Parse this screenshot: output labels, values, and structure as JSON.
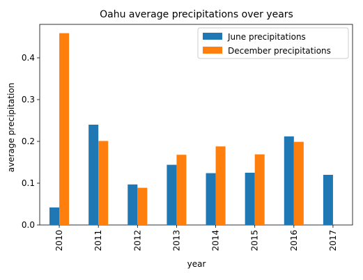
{
  "chart_data": {
    "type": "bar",
    "title": "Oahu average precipitations over years",
    "xlabel": "year",
    "ylabel": "average precipitation",
    "categories": [
      "2010",
      "2011",
      "2012",
      "2013",
      "2014",
      "2015",
      "2016",
      "2017"
    ],
    "series": [
      {
        "name": "June precipitations",
        "color": "#1f77b4",
        "values": [
          0.042,
          0.24,
          0.097,
          0.144,
          0.124,
          0.125,
          0.212,
          0.12
        ]
      },
      {
        "name": "December precipitations",
        "color": "#ff7f0e",
        "values": [
          0.459,
          0.201,
          0.089,
          0.168,
          0.188,
          0.169,
          0.199,
          null
        ]
      }
    ],
    "ylim": [
      0,
      0.48
    ],
    "yticks": [
      "0.0",
      "0.1",
      "0.2",
      "0.3",
      "0.4"
    ],
    "grid": false,
    "legend": "top-right"
  }
}
